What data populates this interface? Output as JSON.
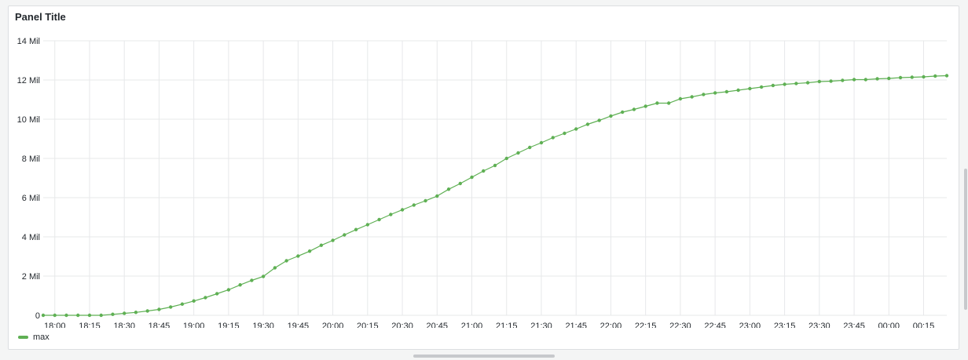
{
  "panel": {
    "title": "Panel Title"
  },
  "chart_data": {
    "type": "line",
    "title": "Panel Title",
    "xlabel": "",
    "ylabel": "",
    "y_unit": "Mil",
    "ylim": [
      0,
      14
    ],
    "y_ticks": [
      {
        "value": 0,
        "label": "0"
      },
      {
        "value": 2,
        "label": "2 Mil"
      },
      {
        "value": 4,
        "label": "4 Mil"
      },
      {
        "value": 6,
        "label": "6 Mil"
      },
      {
        "value": 8,
        "label": "8 Mil"
      },
      {
        "value": 10,
        "label": "10 Mil"
      },
      {
        "value": 12,
        "label": "12 Mil"
      },
      {
        "value": 14,
        "label": "14 Mil"
      }
    ],
    "x_range": [
      "17:55",
      "00:25"
    ],
    "x_ticks": [
      "18:00",
      "18:15",
      "18:30",
      "18:45",
      "19:00",
      "19:15",
      "19:30",
      "19:45",
      "20:00",
      "20:15",
      "20:30",
      "20:45",
      "21:00",
      "21:15",
      "21:30",
      "21:45",
      "22:00",
      "22:15",
      "22:30",
      "22:45",
      "23:00",
      "23:15",
      "23:30",
      "23:45",
      "00:00",
      "00:15"
    ],
    "grid": true,
    "legend_position": "bottom-left",
    "series": [
      {
        "name": "max",
        "color": "#5fb054",
        "points": [
          [
            "17:55",
            0.0
          ],
          [
            "18:00",
            0.0
          ],
          [
            "18:05",
            0.0
          ],
          [
            "18:10",
            0.0
          ],
          [
            "18:15",
            0.0
          ],
          [
            "18:20",
            0.0
          ],
          [
            "18:25",
            0.05
          ],
          [
            "18:30",
            0.1
          ],
          [
            "18:35",
            0.15
          ],
          [
            "18:40",
            0.22
          ],
          [
            "18:45",
            0.3
          ],
          [
            "18:50",
            0.42
          ],
          [
            "18:55",
            0.57
          ],
          [
            "19:00",
            0.73
          ],
          [
            "19:05",
            0.9
          ],
          [
            "19:10",
            1.1
          ],
          [
            "19:15",
            1.3
          ],
          [
            "19:20",
            1.55
          ],
          [
            "19:25",
            1.78
          ],
          [
            "19:30",
            1.98
          ],
          [
            "19:35",
            2.42
          ],
          [
            "19:40",
            2.78
          ],
          [
            "19:45",
            3.02
          ],
          [
            "19:50",
            3.27
          ],
          [
            "19:55",
            3.57
          ],
          [
            "20:00",
            3.82
          ],
          [
            "20:05",
            4.1
          ],
          [
            "20:10",
            4.37
          ],
          [
            "20:15",
            4.62
          ],
          [
            "20:20",
            4.88
          ],
          [
            "20:25",
            5.14
          ],
          [
            "20:30",
            5.38
          ],
          [
            "20:35",
            5.62
          ],
          [
            "20:40",
            5.84
          ],
          [
            "20:45",
            6.08
          ],
          [
            "20:50",
            6.43
          ],
          [
            "20:55",
            6.72
          ],
          [
            "21:00",
            7.04
          ],
          [
            "21:05",
            7.36
          ],
          [
            "21:10",
            7.64
          ],
          [
            "21:15",
            8.0
          ],
          [
            "21:20",
            8.28
          ],
          [
            "21:25",
            8.56
          ],
          [
            "21:30",
            8.8
          ],
          [
            "21:35",
            9.06
          ],
          [
            "21:40",
            9.28
          ],
          [
            "21:45",
            9.5
          ],
          [
            "21:50",
            9.74
          ],
          [
            "21:55",
            9.94
          ],
          [
            "22:00",
            10.16
          ],
          [
            "22:05",
            10.36
          ],
          [
            "22:10",
            10.5
          ],
          [
            "22:15",
            10.66
          ],
          [
            "22:20",
            10.82
          ],
          [
            "22:25",
            10.82
          ],
          [
            "22:30",
            11.04
          ],
          [
            "22:35",
            11.14
          ],
          [
            "22:40",
            11.26
          ],
          [
            "22:45",
            11.34
          ],
          [
            "22:50",
            11.4
          ],
          [
            "22:55",
            11.48
          ],
          [
            "23:00",
            11.56
          ],
          [
            "23:05",
            11.64
          ],
          [
            "23:10",
            11.72
          ],
          [
            "23:15",
            11.78
          ],
          [
            "23:20",
            11.82
          ],
          [
            "23:25",
            11.86
          ],
          [
            "23:30",
            11.92
          ],
          [
            "23:35",
            11.94
          ],
          [
            "23:40",
            11.98
          ],
          [
            "23:45",
            12.02
          ],
          [
            "23:50",
            12.02
          ],
          [
            "23:55",
            12.06
          ],
          [
            "00:00",
            12.08
          ],
          [
            "00:05",
            12.12
          ],
          [
            "00:10",
            12.14
          ],
          [
            "00:15",
            12.16
          ],
          [
            "00:20",
            12.2
          ],
          [
            "00:25",
            12.22
          ]
        ]
      }
    ]
  },
  "legend": {
    "items": [
      {
        "label": "max",
        "color": "#5fb054"
      }
    ]
  }
}
